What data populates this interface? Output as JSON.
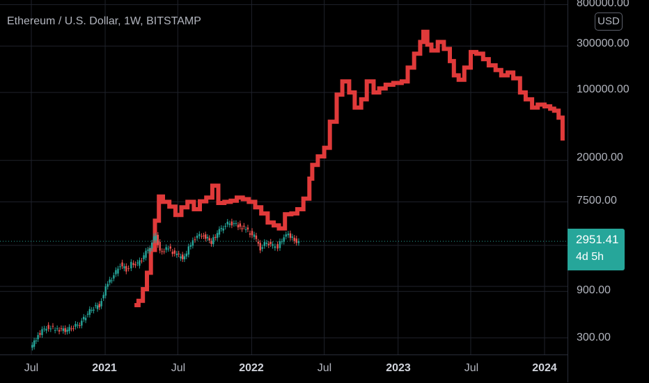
{
  "header": {
    "title": "Ethereum / U.S. Dollar, 1W, BITSTAMP",
    "currency_button": "USD"
  },
  "price_axis": {
    "ticks": [
      "800000.00",
      "300000.00",
      "100000.00",
      "20000.00",
      "7500.00",
      "900.00",
      "300.00"
    ]
  },
  "time_axis": {
    "ticks": [
      {
        "label": "Jul",
        "bold": false
      },
      {
        "label": "2021",
        "bold": true
      },
      {
        "label": "Jul",
        "bold": false
      },
      {
        "label": "2022",
        "bold": true
      },
      {
        "label": "Jul",
        "bold": false
      },
      {
        "label": "2023",
        "bold": true
      },
      {
        "label": "Jul",
        "bold": false
      },
      {
        "label": "2024",
        "bold": true
      }
    ]
  },
  "last_price": {
    "value": "2951.41",
    "countdown": "4d 5h"
  },
  "colors": {
    "up": "#26a69a",
    "down": "#ef5350",
    "overlay": "#e03a3a",
    "grid": "#1f222b",
    "price_line": "#26a69a"
  },
  "chart_data": {
    "type": "line",
    "title": "Ethereum / U.S. Dollar, 1W, BITSTAMP",
    "y_scale": "log",
    "ylim": [
      250,
      800000
    ],
    "x_range": [
      "2020-06-15",
      "2024-02-15"
    ],
    "series": [
      {
        "style": "candlestick",
        "points": [
          [
            "2020-07-01",
            230
          ],
          [
            "2020-07-20",
            320
          ],
          [
            "2020-08-10",
            390
          ],
          [
            "2020-09-01",
            370
          ],
          [
            "2020-10-01",
            360
          ],
          [
            "2020-11-01",
            420
          ],
          [
            "2020-12-01",
            600
          ],
          [
            "2020-12-20",
            650
          ],
          [
            "2021-01-10",
            1100
          ],
          [
            "2021-01-25",
            1300
          ],
          [
            "2021-02-10",
            1700
          ],
          [
            "2021-02-25",
            1500
          ],
          [
            "2021-03-10",
            1750
          ],
          [
            "2021-03-25",
            1700
          ],
          [
            "2021-04-10",
            2100
          ],
          [
            "2021-04-25",
            2600
          ],
          [
            "2021-05-10",
            3500
          ],
          [
            "2021-05-20",
            2300
          ],
          [
            "2021-06-10",
            2500
          ],
          [
            "2021-07-01",
            2100
          ],
          [
            "2021-07-20",
            2000
          ],
          [
            "2021-08-10",
            3100
          ],
          [
            "2021-09-01",
            3500
          ],
          [
            "2021-09-25",
            2900
          ],
          [
            "2021-10-10",
            3600
          ],
          [
            "2021-10-25",
            4200
          ],
          [
            "2021-11-10",
            4600
          ],
          [
            "2021-12-01",
            4300
          ],
          [
            "2021-12-20",
            3900
          ],
          [
            "2022-01-10",
            3300
          ],
          [
            "2022-01-25",
            2500
          ],
          [
            "2022-02-10",
            2900
          ],
          [
            "2022-02-25",
            2650
          ],
          [
            "2022-03-10",
            2600
          ],
          [
            "2022-03-25",
            3300
          ],
          [
            "2022-04-05",
            3450
          ],
          [
            "2022-04-20",
            3000
          ],
          [
            "2022-05-01",
            2951
          ]
        ]
      },
      {
        "style": "step",
        "points": [
          [
            "2021-03-15",
            650
          ],
          [
            "2021-03-25",
            720
          ],
          [
            "2021-04-05",
            950
          ],
          [
            "2021-04-15",
            1400
          ],
          [
            "2021-04-25",
            2400
          ],
          [
            "2021-05-05",
            4800
          ],
          [
            "2021-05-15",
            8500
          ],
          [
            "2021-05-25",
            7500
          ],
          [
            "2021-06-10",
            6700
          ],
          [
            "2021-06-25",
            5500
          ],
          [
            "2021-07-10",
            6600
          ],
          [
            "2021-07-25",
            7500
          ],
          [
            "2021-08-10",
            6300
          ],
          [
            "2021-08-25",
            7600
          ],
          [
            "2021-09-10",
            8300
          ],
          [
            "2021-09-25",
            11000
          ],
          [
            "2021-10-10",
            7300
          ],
          [
            "2021-10-25",
            7500
          ],
          [
            "2021-11-10",
            7700
          ],
          [
            "2021-11-25",
            8300
          ],
          [
            "2021-12-10",
            8000
          ],
          [
            "2021-12-25",
            7500
          ],
          [
            "2022-01-10",
            6600
          ],
          [
            "2022-01-25",
            5700
          ],
          [
            "2022-02-10",
            4600
          ],
          [
            "2022-02-25",
            4300
          ],
          [
            "2022-03-10",
            4000
          ],
          [
            "2022-03-25",
            5600
          ],
          [
            "2022-04-10",
            5700
          ],
          [
            "2022-04-25",
            6300
          ],
          [
            "2022-05-10",
            8100
          ],
          [
            "2022-05-25",
            13000
          ],
          [
            "2022-06-01",
            18000
          ],
          [
            "2022-06-15",
            22000
          ],
          [
            "2022-07-01",
            27000
          ],
          [
            "2022-07-15",
            50000
          ],
          [
            "2022-08-01",
            95000
          ],
          [
            "2022-08-15",
            130000
          ],
          [
            "2022-09-01",
            100000
          ],
          [
            "2022-09-15",
            70000
          ],
          [
            "2022-10-01",
            85000
          ],
          [
            "2022-10-15",
            130000
          ],
          [
            "2022-11-01",
            100000
          ],
          [
            "2022-11-15",
            110000
          ],
          [
            "2022-12-01",
            120000
          ],
          [
            "2022-12-20",
            125000
          ],
          [
            "2023-01-10",
            130000
          ],
          [
            "2023-01-25",
            180000
          ],
          [
            "2023-02-10",
            250000
          ],
          [
            "2023-02-25",
            330000
          ],
          [
            "2023-03-05",
            420000
          ],
          [
            "2023-03-15",
            310000
          ],
          [
            "2023-03-25",
            270000
          ],
          [
            "2023-04-10",
            330000
          ],
          [
            "2023-04-25",
            280000
          ],
          [
            "2023-05-10",
            210000
          ],
          [
            "2023-05-20",
            150000
          ],
          [
            "2023-06-01",
            135000
          ],
          [
            "2023-06-15",
            180000
          ],
          [
            "2023-07-01",
            260000
          ],
          [
            "2023-07-15",
            250000
          ],
          [
            "2023-08-01",
            220000
          ],
          [
            "2023-08-15",
            190000
          ],
          [
            "2023-09-01",
            170000
          ],
          [
            "2023-09-15",
            150000
          ],
          [
            "2023-10-01",
            160000
          ],
          [
            "2023-10-15",
            140000
          ],
          [
            "2023-11-01",
            100000
          ],
          [
            "2023-11-15",
            85000
          ],
          [
            "2023-12-01",
            70000
          ],
          [
            "2023-12-15",
            75000
          ],
          [
            "2024-01-01",
            72000
          ],
          [
            "2024-01-15",
            68000
          ],
          [
            "2024-01-25",
            65000
          ],
          [
            "2024-02-05",
            55000
          ],
          [
            "2024-02-15",
            32000
          ]
        ]
      }
    ]
  }
}
